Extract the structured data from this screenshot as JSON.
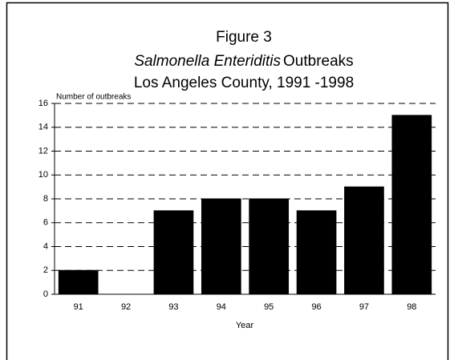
{
  "chart_data": {
    "type": "bar",
    "title": "Figure 3",
    "subtitle_italic": "Salmonella Enteriditis",
    "subtitle": "Outbreaks",
    "subtitle2": "Los Angeles County, 1991 -1998",
    "y_label": "Number of outbreaks",
    "x_label": "Year",
    "categories": [
      "91",
      "92",
      "93",
      "94",
      "95",
      "96",
      "97",
      "98"
    ],
    "values": [
      2,
      0,
      7,
      8,
      8,
      7,
      9,
      15
    ],
    "color": "#000000",
    "ylim": [
      0,
      16
    ],
    "yticks": [
      0,
      2,
      4,
      6,
      8,
      10,
      12,
      14,
      16
    ],
    "grid": true
  }
}
